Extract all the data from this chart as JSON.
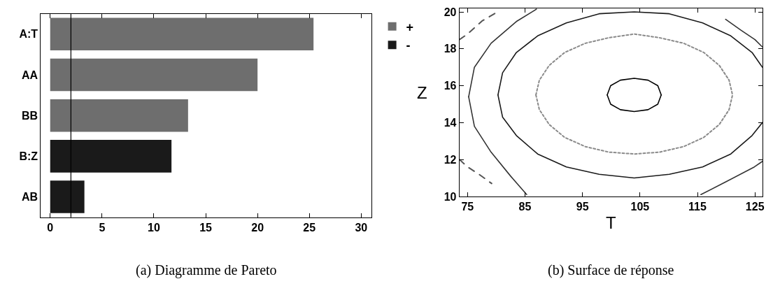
{
  "chart_data": [
    {
      "type": "bar",
      "orientation": "horizontal",
      "categories": [
        "A:T",
        "AA",
        "BB",
        "B:Z",
        "AB"
      ],
      "series": [
        {
          "name": "+",
          "color": "#6e6e6e",
          "values": [
            25.4,
            20.0,
            13.3,
            null,
            null
          ]
        },
        {
          "name": "-",
          "color": "#1a1a1a",
          "values": [
            null,
            null,
            null,
            11.7,
            3.3
          ]
        }
      ],
      "xlim": [
        -0.9,
        31
      ],
      "xticks": [
        0,
        5,
        10,
        15,
        20,
        25,
        30
      ],
      "legend": "top right",
      "ref_lines": [
        {
          "axis": "x",
          "value": 2.0,
          "color": "#000000"
        }
      ],
      "annotations": [
        "(a) Diagramme de Pareto"
      ]
    },
    {
      "type": "line",
      "xlabel": "T",
      "ylabel": "Z",
      "xlim": [
        73.6,
        126.3
      ],
      "ylim": [
        10,
        20.2
      ],
      "xticks": [
        75,
        85,
        95,
        105,
        115,
        125
      ],
      "yticks": [
        10,
        12,
        14,
        16,
        18,
        20
      ],
      "legend": false,
      "marker": "none",
      "series": [
        {
          "color": "#000000",
          "x": [
            99.3,
            99.9,
            101.6,
            104,
            106.4,
            108.1,
            108.7,
            104,
            99.3,
            99.9,
            101.6,
            104,
            106.4,
            108.1,
            108.7
          ],
          "values": [
            15.5,
            16.0,
            16.3,
            16.4,
            16.3,
            16.0,
            15.5,
            null,
            15.5,
            15.0,
            14.7,
            14.6,
            14.7,
            15.0,
            15.5
          ]
        },
        {
          "color": "#8a8a8a",
          "line_style": "dotted",
          "x": [
            86.9,
            87.5,
            89.2,
            91.9,
            95.5,
            99.6,
            104,
            108.4,
            112.6,
            116.1,
            118.8,
            120.5,
            121.1,
            104,
            86.9,
            87.5,
            89.2,
            91.9,
            95.5,
            99.6,
            104,
            108.4,
            112.6,
            116.1,
            118.8,
            120.5,
            121.1
          ],
          "values": [
            15.5,
            16.3,
            17.1,
            17.8,
            18.3,
            18.6,
            18.8,
            18.6,
            18.3,
            17.8,
            17.1,
            16.3,
            15.5,
            null,
            15.5,
            14.7,
            13.9,
            13.2,
            12.7,
            12.4,
            12.3,
            12.4,
            12.7,
            13.2,
            13.9,
            14.7,
            15.5
          ]
        },
        {
          "color": "#1a1a1a",
          "x": [
            80.3,
            81.1,
            83.5,
            87.2,
            92.2,
            97.9,
            104,
            110.1,
            115.9,
            120.8,
            124.5,
            126.3,
            104,
            80.3,
            81.1,
            83.5,
            87.2,
            92.2,
            97.9,
            104,
            110.1,
            115.9,
            120.8,
            124.5,
            126.3
          ],
          "values": [
            15.5,
            16.7,
            17.8,
            18.7,
            19.4,
            19.9,
            20.0,
            19.9,
            19.4,
            18.7,
            17.8,
            17.0,
            null,
            15.5,
            14.3,
            13.3,
            12.3,
            11.6,
            11.2,
            11.0,
            11.2,
            11.6,
            12.3,
            13.3,
            14.0
          ]
        },
        {
          "color": "#333333",
          "x": [
            75.2,
            76.2,
            79.1,
            83.6,
            87.0,
            104,
            119.9,
            122.6,
            125.0,
            126.3,
            104,
            75.2,
            76.2,
            79.1,
            82.5,
            85.3,
            104,
            115.6,
            120.0,
            124.9,
            126.3
          ],
          "values": [
            15.4,
            17.0,
            18.3,
            19.5,
            20.15,
            null,
            19.6,
            19.0,
            18.5,
            18.1,
            null,
            15.4,
            13.8,
            12.4,
            11.1,
            10.1,
            null,
            10.1,
            10.8,
            11.6,
            11.9
          ]
        },
        {
          "color": "#555555",
          "line_style": "dashed",
          "x": [
            73.6,
            75.0,
            77.5,
            80.2,
            77.0,
            73.6,
            75.0,
            77.0,
            79.2
          ],
          "values": [
            18.5,
            18.8,
            19.5,
            20.0,
            null,
            12.0,
            11.6,
            11.2,
            10.7
          ]
        }
      ],
      "annotations": [
        "(b) Surface de réponse"
      ]
    }
  ]
}
